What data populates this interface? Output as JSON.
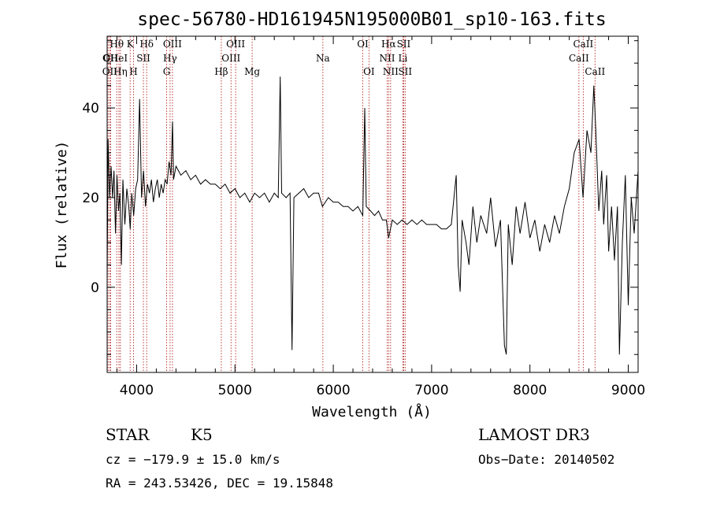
{
  "chart_data": {
    "type": "line",
    "title": "spec-56780-HD161945N195000B01_sp10-163.fits",
    "xlabel": "Wavelength (Å)",
    "ylabel": "Flux (relative)",
    "xlim": [
      3700,
      9100
    ],
    "ylim": [
      -19,
      56
    ],
    "xticks": [
      4000,
      5000,
      6000,
      7000,
      8000,
      9000
    ],
    "yticks": [
      0,
      20,
      40
    ],
    "grid": false,
    "line_color": "#000000",
    "marker_color": "#b22222",
    "spectrum_points": [
      [
        3700,
        2
      ],
      [
        3710,
        33
      ],
      [
        3725,
        20
      ],
      [
        3740,
        27
      ],
      [
        3755,
        20
      ],
      [
        3770,
        26
      ],
      [
        3785,
        12
      ],
      [
        3800,
        25
      ],
      [
        3815,
        17
      ],
      [
        3830,
        21
      ],
      [
        3845,
        5
      ],
      [
        3860,
        24
      ],
      [
        3880,
        14
      ],
      [
        3900,
        22
      ],
      [
        3920,
        18
      ],
      [
        3935,
        13
      ],
      [
        3950,
        21
      ],
      [
        3970,
        16
      ],
      [
        3990,
        22
      ],
      [
        4010,
        24
      ],
      [
        4030,
        42
      ],
      [
        4050,
        20
      ],
      [
        4070,
        26
      ],
      [
        4090,
        18
      ],
      [
        4110,
        23
      ],
      [
        4130,
        21
      ],
      [
        4150,
        24
      ],
      [
        4170,
        19
      ],
      [
        4190,
        22
      ],
      [
        4210,
        24
      ],
      [
        4230,
        20
      ],
      [
        4250,
        23
      ],
      [
        4270,
        21
      ],
      [
        4290,
        24
      ],
      [
        4310,
        23
      ],
      [
        4330,
        28
      ],
      [
        4350,
        25
      ],
      [
        4365,
        37
      ],
      [
        4375,
        24
      ],
      [
        4400,
        27
      ],
      [
        4450,
        25
      ],
      [
        4500,
        26
      ],
      [
        4550,
        24
      ],
      [
        4600,
        25
      ],
      [
        4650,
        23
      ],
      [
        4700,
        24
      ],
      [
        4750,
        23
      ],
      [
        4800,
        23
      ],
      [
        4850,
        22
      ],
      [
        4900,
        23
      ],
      [
        4950,
        21
      ],
      [
        5000,
        22
      ],
      [
        5050,
        20
      ],
      [
        5100,
        21
      ],
      [
        5150,
        19
      ],
      [
        5200,
        21
      ],
      [
        5250,
        20
      ],
      [
        5300,
        21
      ],
      [
        5350,
        19
      ],
      [
        5400,
        21
      ],
      [
        5440,
        20
      ],
      [
        5460,
        47
      ],
      [
        5475,
        21
      ],
      [
        5520,
        20
      ],
      [
        5560,
        21
      ],
      [
        5580,
        -14
      ],
      [
        5600,
        20
      ],
      [
        5650,
        21
      ],
      [
        5700,
        22
      ],
      [
        5750,
        20
      ],
      [
        5800,
        21
      ],
      [
        5850,
        21
      ],
      [
        5890,
        18
      ],
      [
        5950,
        20
      ],
      [
        6000,
        19
      ],
      [
        6050,
        19
      ],
      [
        6100,
        18
      ],
      [
        6150,
        18
      ],
      [
        6200,
        17
      ],
      [
        6250,
        18
      ],
      [
        6300,
        16
      ],
      [
        6320,
        40
      ],
      [
        6335,
        18
      ],
      [
        6380,
        17
      ],
      [
        6420,
        16
      ],
      [
        6460,
        17
      ],
      [
        6500,
        15
      ],
      [
        6540,
        15
      ],
      [
        6563,
        11
      ],
      [
        6600,
        15
      ],
      [
        6650,
        14
      ],
      [
        6700,
        15
      ],
      [
        6750,
        14
      ],
      [
        6800,
        15
      ],
      [
        6850,
        14
      ],
      [
        6900,
        15
      ],
      [
        6950,
        14
      ],
      [
        7000,
        14
      ],
      [
        7050,
        14
      ],
      [
        7100,
        13
      ],
      [
        7150,
        13
      ],
      [
        7200,
        14
      ],
      [
        7250,
        25
      ],
      [
        7270,
        5
      ],
      [
        7290,
        -1
      ],
      [
        7310,
        15
      ],
      [
        7350,
        10
      ],
      [
        7380,
        5
      ],
      [
        7420,
        18
      ],
      [
        7460,
        10
      ],
      [
        7500,
        16
      ],
      [
        7560,
        12
      ],
      [
        7600,
        20
      ],
      [
        7650,
        9
      ],
      [
        7700,
        15
      ],
      [
        7740,
        -13
      ],
      [
        7760,
        -15
      ],
      [
        7780,
        14
      ],
      [
        7820,
        5
      ],
      [
        7860,
        18
      ],
      [
        7900,
        12
      ],
      [
        7950,
        19
      ],
      [
        8000,
        11
      ],
      [
        8050,
        15
      ],
      [
        8100,
        8
      ],
      [
        8150,
        14
      ],
      [
        8200,
        10
      ],
      [
        8250,
        16
      ],
      [
        8300,
        12
      ],
      [
        8350,
        18
      ],
      [
        8400,
        22
      ],
      [
        8450,
        30
      ],
      [
        8500,
        33
      ],
      [
        8540,
        20
      ],
      [
        8580,
        35
      ],
      [
        8620,
        30
      ],
      [
        8650,
        45
      ],
      [
        8670,
        35
      ],
      [
        8700,
        17
      ],
      [
        8730,
        26
      ],
      [
        8750,
        14
      ],
      [
        8780,
        25
      ],
      [
        8800,
        8
      ],
      [
        8830,
        18
      ],
      [
        8860,
        6
      ],
      [
        8890,
        18
      ],
      [
        8910,
        -15
      ],
      [
        8940,
        10
      ],
      [
        8970,
        25
      ],
      [
        9000,
        -4
      ],
      [
        9030,
        20
      ],
      [
        9060,
        12
      ],
      [
        9100,
        26
      ]
    ],
    "lines": [
      {
        "label": "OI",
        "x": 3710,
        "row": 2
      },
      {
        "label": "CII",
        "x": 3735,
        "row": 2
      },
      {
        "label": "OII",
        "x": 3727,
        "row": 3
      },
      {
        "label": "Hθ",
        "x": 3798,
        "row": 1
      },
      {
        "label": "Hη",
        "x": 3835,
        "row": 3
      },
      {
        "label": "HeI",
        "x": 3820,
        "row": 2
      },
      {
        "label": "K",
        "x": 3934,
        "row": 1
      },
      {
        "label": "H",
        "x": 3968,
        "row": 3
      },
      {
        "label": "SII",
        "x": 4069,
        "row": 2
      },
      {
        "label": "Hδ",
        "x": 4102,
        "row": 1
      },
      {
        "label": "G",
        "x": 4305,
        "row": 3
      },
      {
        "label": "Hγ",
        "x": 4340,
        "row": 2
      },
      {
        "label": "OIII",
        "x": 4364,
        "row": 1
      },
      {
        "label": "Hβ",
        "x": 4861,
        "row": 3
      },
      {
        "label": "OIII",
        "x": 4960,
        "row": 2
      },
      {
        "label": "OIII",
        "x": 5007,
        "row": 1
      },
      {
        "label": "Mg",
        "x": 5175,
        "row": 3
      },
      {
        "label": "Na",
        "x": 5894,
        "row": 2
      },
      {
        "label": "OI",
        "x": 6300,
        "row": 1
      },
      {
        "label": "OI",
        "x": 6363,
        "row": 3
      },
      {
        "label": "NII",
        "x": 6548,
        "row": 2
      },
      {
        "label": "Hα",
        "x": 6563,
        "row": 1
      },
      {
        "label": "NII",
        "x": 6583,
        "row": 3
      },
      {
        "label": "SII",
        "x": 6716,
        "row": 1
      },
      {
        "label": "Li",
        "x": 6708,
        "row": 2
      },
      {
        "label": "SII",
        "x": 6731,
        "row": 3
      },
      {
        "label": "CaII",
        "x": 8498,
        "row": 2
      },
      {
        "label": "CaII",
        "x": 8542,
        "row": 1
      },
      {
        "label": "CaII",
        "x": 8662,
        "row": 3
      }
    ]
  },
  "info": {
    "class_label": "STAR",
    "subclass_label": "K5",
    "survey": "LAMOST DR3",
    "cz": "cz = −179.9 ± 15.0 km/s",
    "obs_date": "Obs−Date: 20140502",
    "coords": "RA = 243.53426, DEC =  19.15848"
  }
}
